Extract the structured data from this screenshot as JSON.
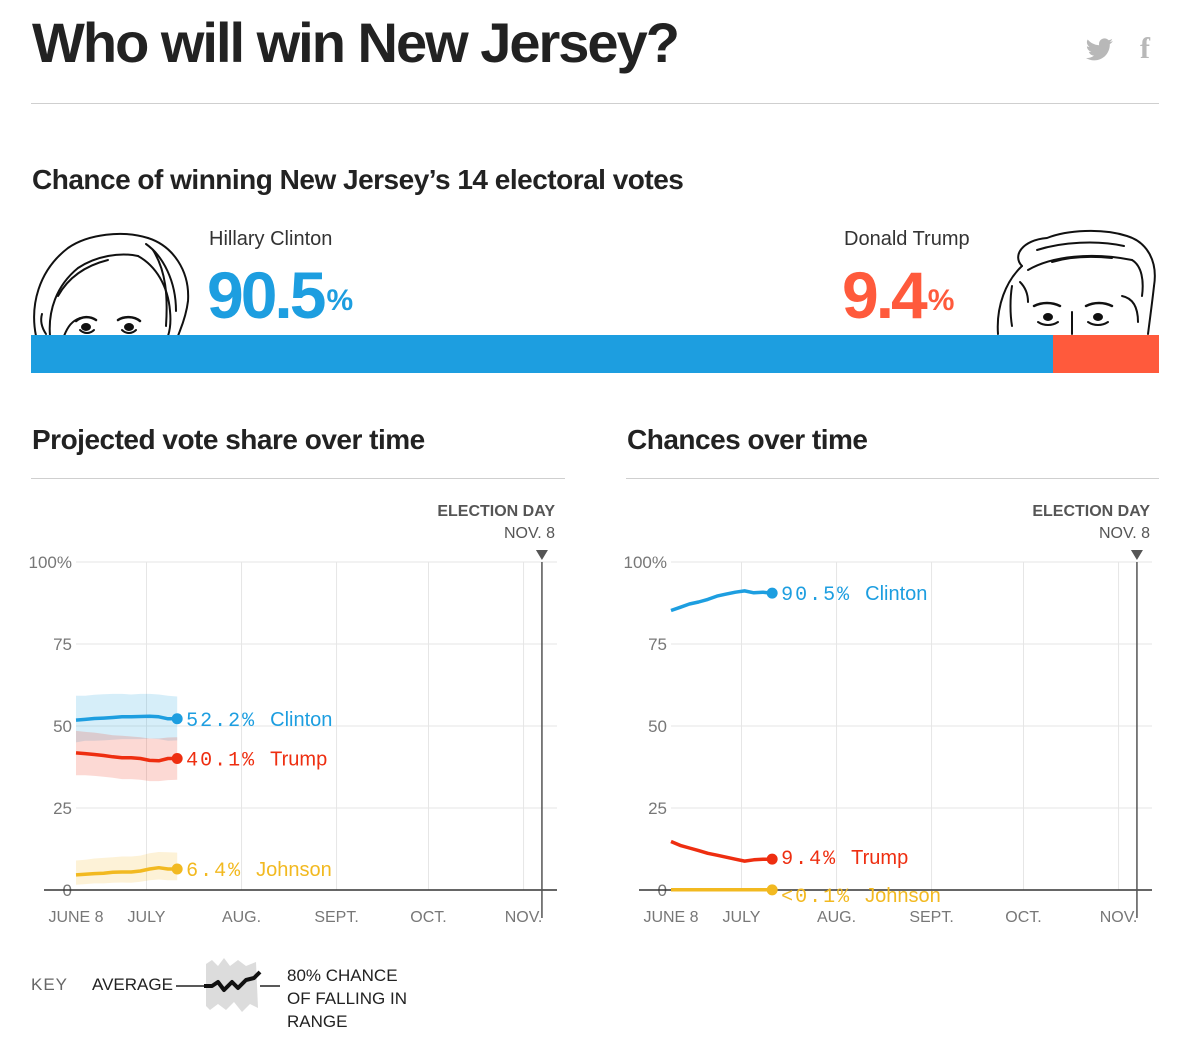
{
  "header": {
    "title": "Who will win New Jersey?",
    "twitter_icon": "twitter-icon",
    "facebook_icon": "facebook-icon"
  },
  "chance": {
    "title": "Chance of winning New Jersey’s 14 electoral votes",
    "clinton": {
      "name": "Hillary Clinton",
      "pct": "90.5",
      "pct_value": 90.5,
      "color": "#1d9ee0",
      "portrait_icon": "clinton-portrait-icon"
    },
    "trump": {
      "name": "Donald Trump",
      "pct": "9.4",
      "pct_value": 9.4,
      "color": "#ff5a3c",
      "portrait_icon": "trump-portrait-icon"
    },
    "percent_sign": "%"
  },
  "election_day": {
    "label": "ELECTION DAY",
    "date": "NOV. 8"
  },
  "colors": {
    "clinton": "#1d9ee0",
    "trump": "#ee2e10",
    "johnson": "#f2b920",
    "grid": "#e6e6e6",
    "axis": "#333333"
  },
  "chart_data": [
    {
      "type": "line",
      "title": "Projected vote share over time",
      "ylim": [
        0,
        100
      ],
      "yticks": [
        "0",
        "25",
        "50",
        "75",
        "100%"
      ],
      "ytick_values": [
        0,
        25,
        50,
        75,
        100
      ],
      "xticks": [
        "JUNE 8",
        "JULY",
        "AUG.",
        "SEPT.",
        "OCT.",
        "NOV."
      ],
      "xtick_days": [
        0,
        23,
        54,
        85,
        115,
        146
      ],
      "xlim_days": [
        0,
        153
      ],
      "x_labels": "days after June 8",
      "series": [
        {
          "name": "Clinton",
          "label": "52.2% Clinton",
          "value_label": "52.2%",
          "color": "#1d9ee0",
          "x": [
            0,
            3,
            6,
            9,
            12,
            15,
            18,
            21,
            24,
            27,
            30,
            33
          ],
          "y": [
            51.8,
            52.0,
            52.3,
            52.4,
            52.6,
            52.8,
            52.8,
            52.9,
            53.0,
            52.8,
            52.2,
            52.2
          ],
          "low": [
            45.0,
            45.5,
            45.5,
            45.6,
            45.8,
            46.0,
            46.0,
            46.0,
            46.2,
            46.0,
            45.5,
            45.6
          ],
          "high": [
            59.2,
            59.2,
            59.5,
            59.7,
            59.8,
            59.8,
            59.6,
            59.8,
            59.8,
            59.6,
            59.2,
            59.0
          ]
        },
        {
          "name": "Trump",
          "label": "40.1% Trump",
          "value_label": "40.1%",
          "color": "#ee2e10",
          "x": [
            0,
            3,
            6,
            9,
            12,
            15,
            18,
            21,
            24,
            27,
            30,
            33
          ],
          "y": [
            41.8,
            41.6,
            41.3,
            41.0,
            40.6,
            40.3,
            40.3,
            40.1,
            39.5,
            39.4,
            40.1,
            40.1
          ],
          "low": [
            35.0,
            35.0,
            34.8,
            34.5,
            34.2,
            33.8,
            33.8,
            33.6,
            33.2,
            33.2,
            33.5,
            33.6
          ],
          "high": [
            48.5,
            48.2,
            48.0,
            47.6,
            47.2,
            47.0,
            46.8,
            46.6,
            46.2,
            46.2,
            46.5,
            46.6
          ]
        },
        {
          "name": "Johnson",
          "label": "6.4% Johnson",
          "value_label": "6.4%",
          "color": "#f2b920",
          "x": [
            0,
            3,
            6,
            9,
            12,
            15,
            18,
            21,
            24,
            27,
            30,
            33
          ],
          "y": [
            4.6,
            4.8,
            5.0,
            5.1,
            5.4,
            5.5,
            5.5,
            5.8,
            6.4,
            6.8,
            6.4,
            6.4
          ],
          "low": [
            1.6,
            1.8,
            2.0,
            2.0,
            2.2,
            2.3,
            2.2,
            2.5,
            3.0,
            3.2,
            3.0,
            3.0
          ],
          "high": [
            9.0,
            9.2,
            9.6,
            9.8,
            10.0,
            10.2,
            10.2,
            10.5,
            11.2,
            11.6,
            11.5,
            11.4
          ]
        }
      ]
    },
    {
      "type": "line",
      "title": "Chances over time",
      "ylim": [
        0,
        100
      ],
      "yticks": [
        "0",
        "25",
        "50",
        "75",
        "100%"
      ],
      "ytick_values": [
        0,
        25,
        50,
        75,
        100
      ],
      "xticks": [
        "JUNE 8",
        "JULY",
        "AUG.",
        "SEPT.",
        "OCT.",
        "NOV."
      ],
      "xtick_days": [
        0,
        23,
        54,
        85,
        115,
        146
      ],
      "xlim_days": [
        0,
        153
      ],
      "x_labels": "days after June 8",
      "series": [
        {
          "name": "Clinton",
          "label": "90.5% Clinton",
          "value_label": "90.5%",
          "color": "#1d9ee0",
          "x": [
            0,
            3,
            6,
            9,
            12,
            15,
            18,
            21,
            24,
            27,
            30,
            33
          ],
          "y": [
            85.2,
            86.2,
            87.2,
            87.8,
            88.6,
            89.6,
            90.2,
            90.8,
            91.2,
            90.6,
            90.8,
            90.5
          ]
        },
        {
          "name": "Trump",
          "label": "9.4% Trump",
          "value_label": "9.4%",
          "color": "#ee2e10",
          "x": [
            0,
            3,
            6,
            9,
            12,
            15,
            18,
            21,
            24,
            27,
            30,
            33
          ],
          "y": [
            14.8,
            13.6,
            12.8,
            12.0,
            11.2,
            10.6,
            10.0,
            9.4,
            8.8,
            9.2,
            9.4,
            9.4
          ]
        },
        {
          "name": "Johnson",
          "label": "<0.1% Johnson",
          "value_label": "<0.1%",
          "color": "#f2b920",
          "x": [
            0,
            3,
            6,
            9,
            12,
            15,
            18,
            21,
            24,
            27,
            30,
            33
          ],
          "y": [
            0.05,
            0.05,
            0.05,
            0.05,
            0.05,
            0.05,
            0.05,
            0.05,
            0.05,
            0.05,
            0.05,
            0.05
          ]
        }
      ]
    }
  ],
  "key": {
    "label": "KEY",
    "average": "AVERAGE",
    "range_line1": "80% CHANCE",
    "range_line2": "OF FALLING IN",
    "range_line3": "RANGE"
  }
}
